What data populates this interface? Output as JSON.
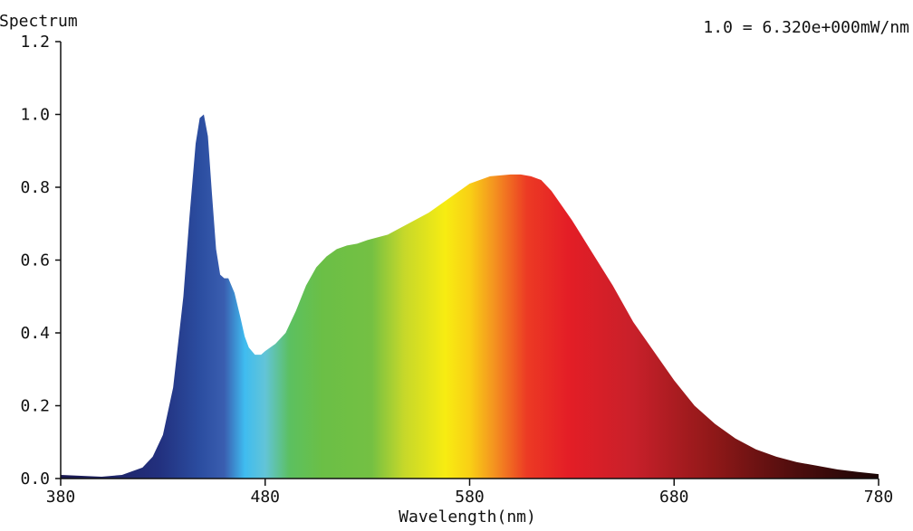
{
  "chart_data": {
    "type": "area",
    "title": "",
    "ylabel": "Spectrum",
    "xlabel": "Wavelength(nm)",
    "scale_note": "1.0 = 6.320e+000mW/nm",
    "xlim": [
      380,
      780
    ],
    "ylim": [
      0,
      1.2
    ],
    "x_ticks": [
      "380",
      "480",
      "580",
      "680",
      "780"
    ],
    "y_ticks": [
      "0.0",
      "0.2",
      "0.4",
      "0.6",
      "0.8",
      "1.0",
      "1.2"
    ],
    "grid": false,
    "fill": "wavelength-spectrum",
    "series": [
      {
        "x": [
          380,
          400,
          410,
          420,
          425,
          430,
          435,
          440,
          443,
          446,
          448,
          450,
          452,
          454,
          456,
          458,
          460,
          462,
          465,
          468,
          470,
          472,
          475,
          478,
          480,
          485,
          490,
          495,
          500,
          505,
          510,
          515,
          520,
          525,
          530,
          540,
          550,
          560,
          570,
          580,
          590,
          600,
          605,
          610,
          615,
          620,
          630,
          640,
          650,
          660,
          670,
          680,
          690,
          700,
          710,
          720,
          730,
          740,
          750,
          760,
          770,
          780
        ],
        "y": [
          0.01,
          0.005,
          0.01,
          0.03,
          0.06,
          0.12,
          0.25,
          0.5,
          0.72,
          0.92,
          0.99,
          1.0,
          0.94,
          0.78,
          0.63,
          0.56,
          0.55,
          0.55,
          0.51,
          0.44,
          0.39,
          0.36,
          0.34,
          0.34,
          0.35,
          0.37,
          0.4,
          0.46,
          0.53,
          0.58,
          0.61,
          0.63,
          0.64,
          0.645,
          0.655,
          0.67,
          0.7,
          0.73,
          0.77,
          0.81,
          0.83,
          0.835,
          0.835,
          0.83,
          0.82,
          0.79,
          0.71,
          0.62,
          0.53,
          0.43,
          0.35,
          0.27,
          0.2,
          0.15,
          0.11,
          0.08,
          0.06,
          0.045,
          0.035,
          0.025,
          0.018,
          0.012
        ]
      }
    ]
  }
}
